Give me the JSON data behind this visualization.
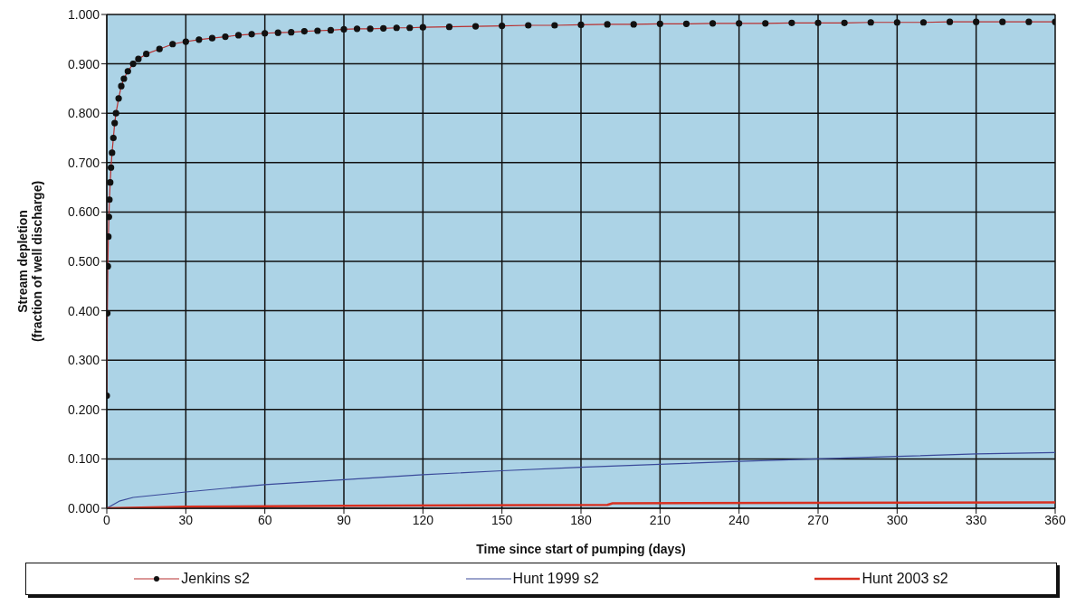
{
  "chart_data": {
    "type": "line",
    "xlabel": "Time since start of pumping (days)",
    "ylabel": "Stream depletion\n(fraction of well discharge)",
    "xlim": [
      0,
      360
    ],
    "xticks": [
      0,
      30,
      60,
      90,
      120,
      150,
      180,
      210,
      240,
      270,
      300,
      330,
      360
    ],
    "ylim": [
      0,
      1
    ],
    "yticks": [
      {
        "value": 0,
        "label": "0.000"
      },
      {
        "value": 0.1,
        "label": "0.100"
      },
      {
        "value": 0.2,
        "label": "0.200"
      },
      {
        "value": 0.3,
        "label": "0.300"
      },
      {
        "value": 0.4,
        "label": "0.400"
      },
      {
        "value": 0.5,
        "label": "0.500"
      },
      {
        "value": 0.6,
        "label": "0.600"
      },
      {
        "value": 0.7,
        "label": "0.700"
      },
      {
        "value": 0.8,
        "label": "0.800"
      },
      {
        "value": 0.9,
        "label": "0.900"
      },
      {
        "value": 1,
        "label": "1.000"
      }
    ],
    "grid": true,
    "legend": "bottom",
    "series": [
      {
        "name": "Jenkins s2",
        "color": "#b83030",
        "marker": "circle",
        "x": [
          0,
          0.2,
          0.4,
          0.6,
          0.8,
          1,
          1.3,
          1.6,
          2,
          2.5,
          3,
          3.5,
          4.5,
          5.5,
          6.5,
          8,
          10,
          12,
          15,
          20,
          25,
          30,
          35,
          40,
          45,
          50,
          55,
          60,
          65,
          70,
          75,
          80,
          85,
          90,
          95,
          100,
          105,
          110,
          115,
          120,
          130,
          140,
          150,
          160,
          170,
          180,
          190,
          200,
          210,
          220,
          230,
          240,
          250,
          260,
          270,
          280,
          290,
          300,
          310,
          320,
          330,
          340,
          350,
          360
        ],
        "values": [
          0.228,
          0.395,
          0.49,
          0.55,
          0.59,
          0.625,
          0.66,
          0.69,
          0.72,
          0.75,
          0.78,
          0.8,
          0.83,
          0.855,
          0.87,
          0.885,
          0.9,
          0.91,
          0.92,
          0.93,
          0.94,
          0.945,
          0.949,
          0.952,
          0.955,
          0.958,
          0.96,
          0.962,
          0.963,
          0.964,
          0.966,
          0.967,
          0.968,
          0.97,
          0.971,
          0.971,
          0.972,
          0.973,
          0.973,
          0.974,
          0.975,
          0.976,
          0.977,
          0.978,
          0.978,
          0.979,
          0.98,
          0.98,
          0.981,
          0.981,
          0.982,
          0.982,
          0.982,
          0.983,
          0.983,
          0.983,
          0.984,
          0.984,
          0.984,
          0.985,
          0.985,
          0.985,
          0.985,
          0.985
        ]
      },
      {
        "name": "Hunt 1999 s2",
        "color": "#3a4a9a",
        "marker": "none",
        "x": [
          0,
          5,
          10,
          30,
          60,
          90,
          120,
          150,
          180,
          210,
          240,
          270,
          300,
          330,
          360
        ],
        "values": [
          0,
          0.015,
          0.022,
          0.033,
          0.048,
          0.058,
          0.068,
          0.076,
          0.083,
          0.089,
          0.095,
          0.1,
          0.105,
          0.11,
          0.113
        ]
      },
      {
        "name": "Hunt 2003 s2",
        "color": "#d83020",
        "marker": "none",
        "x": [
          0,
          30,
          90,
          190,
          192,
          360
        ],
        "values": [
          0,
          0.003,
          0.005,
          0.007,
          0.01,
          0.012
        ]
      }
    ]
  }
}
